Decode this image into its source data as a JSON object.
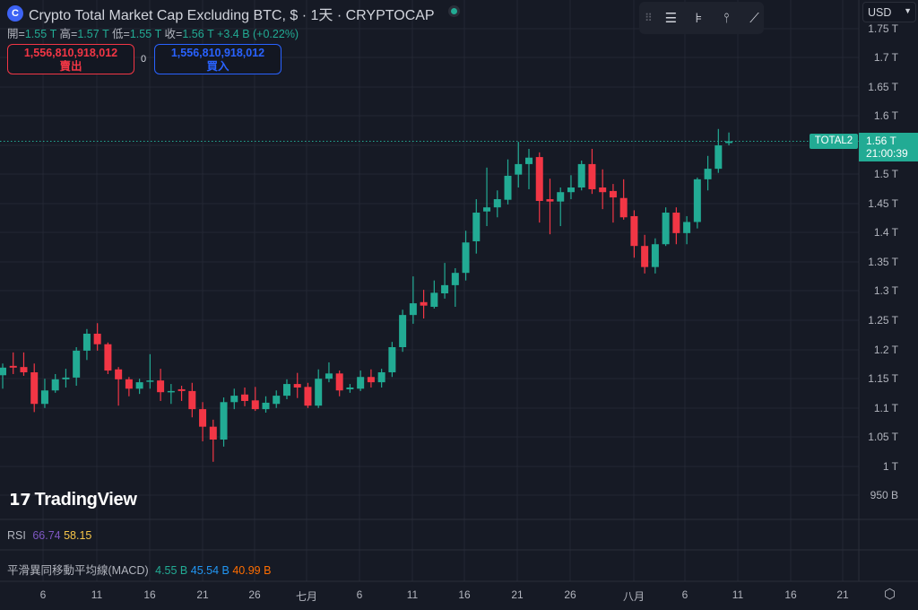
{
  "header": {
    "logo_icon": "coin-c-icon",
    "title": "Crypto Total Market Cap Excluding BTC, $ · 1天 · CRYPTOCAP",
    "ohlc": {
      "open_label": "開=",
      "open": "1.55 T",
      "high_label": "高=",
      "high": "1.57 T",
      "low_label": "低=",
      "low": "1.55 T",
      "close_label": "收=",
      "close": "1.56 T",
      "change": "+3.4 B (+0.22%)"
    },
    "sell": {
      "price": "1,556,810,918,012",
      "label": "賣出"
    },
    "spread": "0",
    "buy": {
      "price": "1,556,810,918,012",
      "label": "買入"
    }
  },
  "toolbar": {
    "icons": [
      "drag-handle-icon",
      "horizontal-lines-icon",
      "fib-icon",
      "vertical-pin-icon",
      "trend-line-icon"
    ]
  },
  "currency_select": "USD",
  "price_axis": {
    "ticks": [
      "1.75 T",
      "1.7 T",
      "1.65 T",
      "1.6 T",
      "1.5 T",
      "1.45 T",
      "1.4 T",
      "1.35 T",
      "1.3 T",
      "1.25 T",
      "1.2 T",
      "1.15 T",
      "1.1 T",
      "1.05 T",
      "1 T",
      "950 B"
    ],
    "symbol_label": "TOTAL2",
    "last_price": "1.56 T",
    "countdown": "21:00:39"
  },
  "branding": "TradingView",
  "rsi": {
    "label": "RSI",
    "value1": "66.74",
    "value2": "58.15"
  },
  "macd": {
    "label": "平滑異同移動平均線(MACD)",
    "value1": "4.55 B",
    "value2": "45.54 B",
    "value3": "40.99 B"
  },
  "time_axis": {
    "ticks": [
      "6",
      "11",
      "16",
      "21",
      "26",
      "七月",
      "6",
      "11",
      "16",
      "21",
      "26",
      "八月",
      "6",
      "11",
      "16",
      "21"
    ]
  },
  "colors": {
    "up": "#22ab94",
    "down": "#f23645",
    "background": "#161a25",
    "grid": "#232734"
  },
  "chart_data": {
    "type": "candlestick",
    "unit": "T",
    "ylim": [
      0.94,
      1.78
    ],
    "grid": true,
    "last_price": 1.556,
    "x": [
      "06-02",
      "06-03",
      "06-04",
      "06-05",
      "06-06",
      "06-07",
      "06-08",
      "06-09",
      "06-10",
      "06-11",
      "06-12",
      "06-13",
      "06-14",
      "06-15",
      "06-16",
      "06-17",
      "06-18",
      "06-19",
      "06-20",
      "06-21",
      "06-22",
      "06-23",
      "06-24",
      "06-25",
      "06-26",
      "06-27",
      "06-28",
      "06-29",
      "06-30",
      "07-01",
      "07-02",
      "07-03",
      "07-04",
      "07-05",
      "07-06",
      "07-07",
      "07-08",
      "07-09",
      "07-10",
      "07-11",
      "07-12",
      "07-13",
      "07-14",
      "07-15",
      "07-16",
      "07-17",
      "07-18",
      "07-19",
      "07-20",
      "07-21",
      "07-22",
      "07-23",
      "07-24",
      "07-25",
      "07-26",
      "07-27",
      "07-28",
      "07-29",
      "07-30",
      "07-31",
      "08-01",
      "08-02",
      "08-03",
      "08-04",
      "08-05",
      "08-06",
      "08-07",
      "08-08",
      "08-09",
      "08-10"
    ],
    "ohlc": [
      [
        1.156,
        1.176,
        1.133,
        1.169
      ],
      [
        1.172,
        1.195,
        1.158,
        1.169
      ],
      [
        1.17,
        1.195,
        1.155,
        1.161
      ],
      [
        1.161,
        1.176,
        1.093,
        1.107
      ],
      [
        1.107,
        1.15,
        1.1,
        1.13
      ],
      [
        1.13,
        1.158,
        1.126,
        1.149
      ],
      [
        1.149,
        1.167,
        1.135,
        1.152
      ],
      [
        1.152,
        1.204,
        1.138,
        1.198
      ],
      [
        1.198,
        1.235,
        1.182,
        1.227
      ],
      [
        1.227,
        1.245,
        1.198,
        1.209
      ],
      [
        1.209,
        1.212,
        1.158,
        1.164
      ],
      [
        1.166,
        1.17,
        1.104,
        1.149
      ],
      [
        1.149,
        1.153,
        1.12,
        1.133
      ],
      [
        1.133,
        1.15,
        1.124,
        1.144
      ],
      [
        1.146,
        1.192,
        1.133,
        1.147
      ],
      [
        1.147,
        1.167,
        1.112,
        1.127
      ],
      [
        1.127,
        1.141,
        1.107,
        1.129
      ],
      [
        1.132,
        1.138,
        1.112,
        1.129
      ],
      [
        1.129,
        1.143,
        1.084,
        1.098
      ],
      [
        1.098,
        1.11,
        1.043,
        1.068
      ],
      [
        1.068,
        1.08,
        1.008,
        1.046
      ],
      [
        1.046,
        1.118,
        1.034,
        1.11
      ],
      [
        1.11,
        1.133,
        1.098,
        1.121
      ],
      [
        1.123,
        1.135,
        1.103,
        1.112
      ],
      [
        1.113,
        1.136,
        1.095,
        1.098
      ],
      [
        1.098,
        1.12,
        1.092,
        1.109
      ],
      [
        1.107,
        1.13,
        1.1,
        1.121
      ],
      [
        1.121,
        1.149,
        1.115,
        1.141
      ],
      [
        1.141,
        1.16,
        1.117,
        1.135
      ],
      [
        1.136,
        1.143,
        1.1,
        1.104
      ],
      [
        1.104,
        1.166,
        1.1,
        1.15
      ],
      [
        1.15,
        1.178,
        1.144,
        1.159
      ],
      [
        1.159,
        1.164,
        1.12,
        1.13
      ],
      [
        1.132,
        1.141,
        1.126,
        1.135
      ],
      [
        1.133,
        1.164,
        1.129,
        1.153
      ],
      [
        1.153,
        1.166,
        1.135,
        1.144
      ],
      [
        1.144,
        1.167,
        1.135,
        1.161
      ],
      [
        1.161,
        1.213,
        1.153,
        1.204
      ],
      [
        1.204,
        1.268,
        1.196,
        1.259
      ],
      [
        1.259,
        1.325,
        1.244,
        1.279
      ],
      [
        1.281,
        1.302,
        1.253,
        1.275
      ],
      [
        1.273,
        1.318,
        1.27,
        1.297
      ],
      [
        1.296,
        1.348,
        1.287,
        1.31
      ],
      [
        1.31,
        1.339,
        1.273,
        1.331
      ],
      [
        1.331,
        1.403,
        1.318,
        1.383
      ],
      [
        1.385,
        1.457,
        1.364,
        1.434
      ],
      [
        1.436,
        1.511,
        1.411,
        1.443
      ],
      [
        1.443,
        1.472,
        1.426,
        1.457
      ],
      [
        1.456,
        1.525,
        1.448,
        1.497
      ],
      [
        1.499,
        1.555,
        1.477,
        1.517
      ],
      [
        1.517,
        1.543,
        1.474,
        1.528
      ],
      [
        1.529,
        1.537,
        1.417,
        1.454
      ],
      [
        1.457,
        1.492,
        1.397,
        1.453
      ],
      [
        1.453,
        1.477,
        1.411,
        1.469
      ],
      [
        1.469,
        1.498,
        1.457,
        1.477
      ],
      [
        1.477,
        1.523,
        1.472,
        1.517
      ],
      [
        1.517,
        1.543,
        1.466,
        1.474
      ],
      [
        1.477,
        1.508,
        1.44,
        1.469
      ],
      [
        1.471,
        1.483,
        1.417,
        1.46
      ],
      [
        1.459,
        1.491,
        1.422,
        1.426
      ],
      [
        1.428,
        1.438,
        1.357,
        1.377
      ],
      [
        1.377,
        1.396,
        1.33,
        1.341
      ],
      [
        1.341,
        1.39,
        1.33,
        1.38
      ],
      [
        1.38,
        1.443,
        1.377,
        1.434
      ],
      [
        1.434,
        1.443,
        1.38,
        1.399
      ],
      [
        1.399,
        1.428,
        1.38,
        1.418
      ],
      [
        1.418,
        1.494,
        1.407,
        1.491
      ],
      [
        1.491,
        1.531,
        1.472,
        1.509
      ],
      [
        1.509,
        1.577,
        1.502,
        1.549
      ],
      [
        1.553,
        1.571,
        1.549,
        1.556
      ]
    ]
  }
}
